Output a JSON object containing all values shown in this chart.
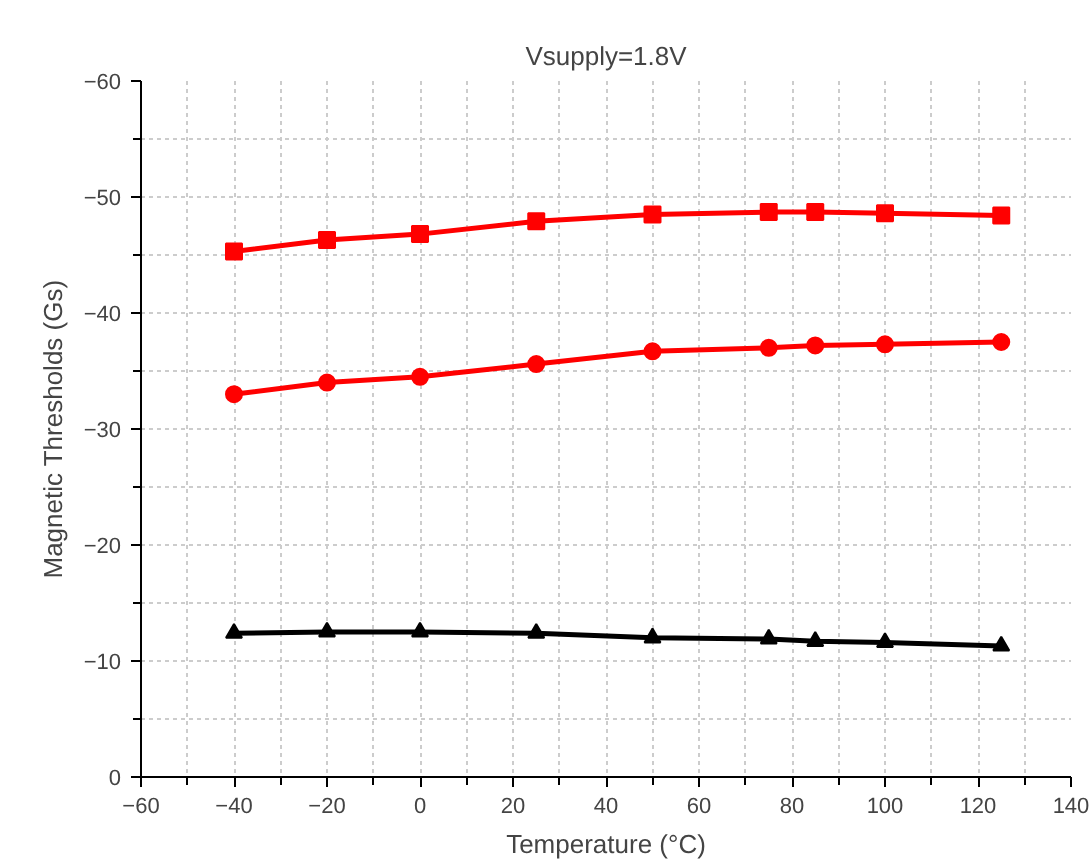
{
  "chart_data": {
    "type": "line",
    "title": "Vsupply=1.8V",
    "xlabel": "Temperature (°C)",
    "ylabel": "Magnetic Thresholds (Gs)",
    "x": [
      -40,
      -20,
      0,
      25,
      50,
      75,
      85,
      100,
      125
    ],
    "series": [
      {
        "color": "#ff0000",
        "marker": "square",
        "values": [
          -45.3,
          -46.3,
          -46.8,
          -47.9,
          -48.5,
          -48.7,
          -48.7,
          -48.6,
          -48.4
        ]
      },
      {
        "color": "#ff0000",
        "marker": "circle",
        "values": [
          -33.0,
          -34.0,
          -34.5,
          -35.6,
          -36.7,
          -37.0,
          -37.2,
          -37.3,
          -37.5
        ]
      },
      {
        "color": "#000000",
        "marker": "triangle",
        "values": [
          -12.4,
          -12.5,
          -12.5,
          -12.4,
          -12.0,
          -11.9,
          -11.7,
          -11.6,
          -11.3
        ]
      }
    ],
    "xlim": [
      -60,
      140
    ],
    "xticks": [
      -60,
      -40,
      -20,
      0,
      20,
      40,
      60,
      80,
      100,
      120,
      140
    ],
    "ylim": [
      0,
      -60
    ],
    "yticks": [
      0,
      -10,
      -20,
      -30,
      -40,
      -50,
      -60
    ],
    "grid": true,
    "line_style": "solid"
  }
}
